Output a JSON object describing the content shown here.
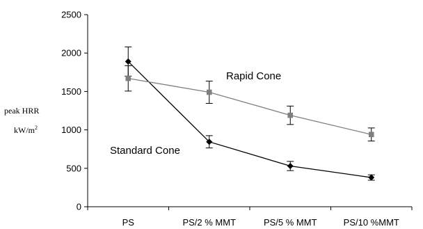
{
  "chart_data": {
    "type": "line",
    "title": "",
    "xlabel": "",
    "ylabel": {
      "line1": "peak HRR",
      "line2_main": "kW/m",
      "line2_sup": "2"
    },
    "categories": [
      "PS",
      "PS/2 % MMT",
      "PS/5 % MMT",
      "PS/10 %MMT"
    ],
    "ylim": [
      0,
      2500
    ],
    "yticks": [
      "0",
      "500",
      "1000",
      "1500",
      "2000",
      "2500"
    ],
    "grid": false,
    "legend": "none",
    "series": [
      {
        "name": "Standard Cone",
        "color": "#000000",
        "marker": "diamond",
        "values": [
          1890,
          845,
          530,
          380
        ],
        "errors": [
          190,
          80,
          60,
          35
        ]
      },
      {
        "name": "Rapid Cone",
        "color": "#7f7f7f",
        "marker": "square",
        "values": [
          1670,
          1490,
          1190,
          940
        ],
        "errors": [
          165,
          145,
          120,
          85
        ]
      }
    ],
    "annotations": [
      {
        "text": "Rapid Cone",
        "series": 1
      },
      {
        "text": "Standard Cone",
        "series": 0
      }
    ]
  }
}
